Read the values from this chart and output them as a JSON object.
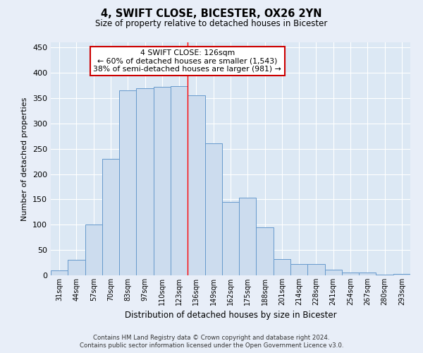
{
  "title": "4, SWIFT CLOSE, BICESTER, OX26 2YN",
  "subtitle": "Size of property relative to detached houses in Bicester",
  "xlabel": "Distribution of detached houses by size in Bicester",
  "ylabel": "Number of detached properties",
  "bar_labels": [
    "31sqm",
    "44sqm",
    "57sqm",
    "70sqm",
    "83sqm",
    "97sqm",
    "110sqm",
    "123sqm",
    "136sqm",
    "149sqm",
    "162sqm",
    "175sqm",
    "188sqm",
    "201sqm",
    "214sqm",
    "228sqm",
    "241sqm",
    "254sqm",
    "267sqm",
    "280sqm",
    "293sqm"
  ],
  "bar_values": [
    10,
    30,
    100,
    230,
    365,
    370,
    372,
    373,
    355,
    260,
    145,
    153,
    95,
    32,
    22,
    23,
    11,
    5,
    5,
    2,
    3
  ],
  "bar_color": "#ccdcee",
  "bar_edge_color": "#6699cc",
  "annotation_label": "4 SWIFT CLOSE: 126sqm",
  "annotation_line1": "← 60% of detached houses are smaller (1,543)",
  "annotation_line2": "38% of semi-detached houses are larger (981) →",
  "annotation_box_color": "#ffffff",
  "annotation_box_edge_color": "#cc0000",
  "ylim": [
    0,
    460
  ],
  "yticks": [
    0,
    50,
    100,
    150,
    200,
    250,
    300,
    350,
    400,
    450
  ],
  "footer1": "Contains HM Land Registry data © Crown copyright and database right 2024.",
  "footer2": "Contains public sector information licensed under the Open Government Licence v3.0.",
  "bg_color": "#e8eef8",
  "axes_bg_color": "#dce8f4"
}
